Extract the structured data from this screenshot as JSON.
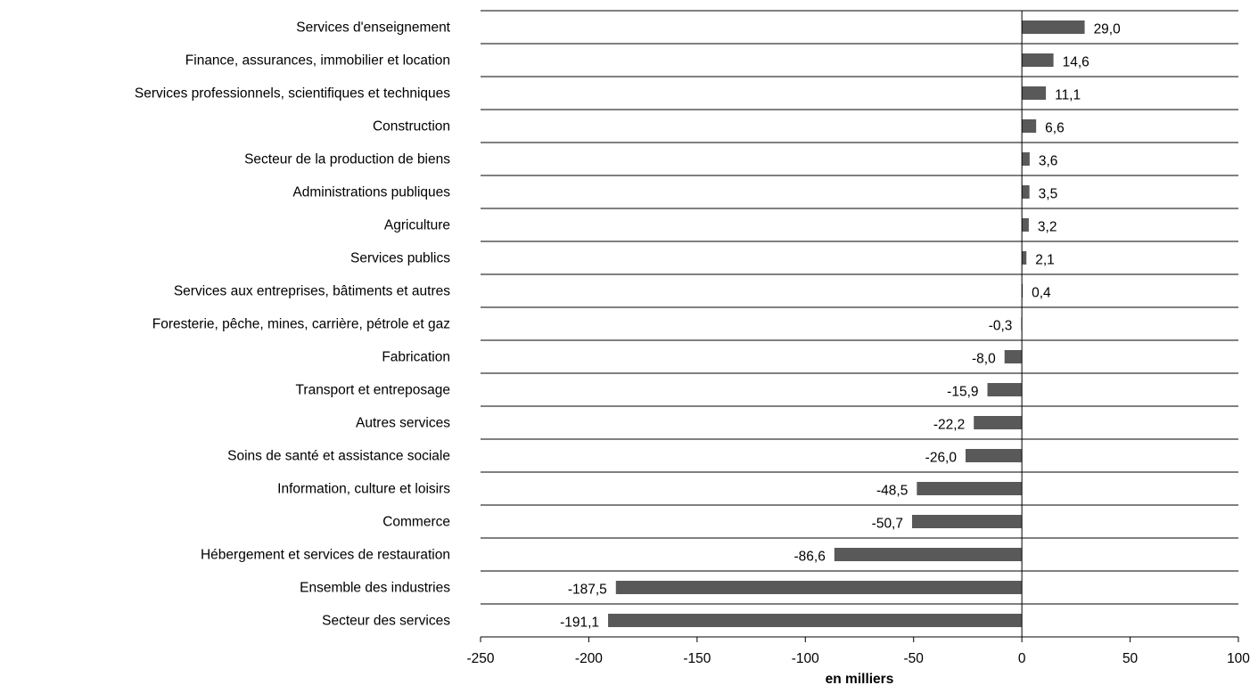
{
  "chart_data": {
    "type": "bar",
    "orientation": "horizontal",
    "categories": [
      "Services d'enseignement",
      "Finance, assurances, immobilier et location",
      "Services professionnels, scientifiques et techniques",
      "Construction",
      "Secteur de la production de biens",
      "Administrations publiques",
      "Agriculture",
      "Services publics",
      "Services aux entreprises, bâtiments et autres",
      "Foresterie, pêche, mines, carrière, pétrole et gaz",
      "Fabrication",
      "Transport et entreposage",
      "Autres services",
      "Soins de santé et assistance sociale",
      "Information, culture et loisirs",
      "Commerce",
      "Hébergement et services de restauration",
      "Ensemble des industries",
      "Secteur des services"
    ],
    "values": [
      29.0,
      14.6,
      11.1,
      6.6,
      3.6,
      3.5,
      3.2,
      2.1,
      0.4,
      -0.3,
      -8.0,
      -15.9,
      -22.2,
      -26.0,
      -48.5,
      -50.7,
      -86.6,
      -187.5,
      -191.1
    ],
    "value_labels": [
      "29,0",
      "14,6",
      "11,1",
      "6,6",
      "3,6",
      "3,5",
      "3,2",
      "2,1",
      "0,4",
      "-0,3",
      "-8,0",
      "-15,9",
      "-22,2",
      "-26,0",
      "-48,5",
      "-50,7",
      "-86,6",
      "-187,5",
      "-191,1"
    ],
    "xlabel": "en milliers",
    "ylabel": "",
    "title": "",
    "xlim": [
      -250,
      100
    ],
    "xticks": [
      -250,
      -200,
      -150,
      -100,
      -50,
      0,
      50,
      100
    ],
    "xtick_labels": [
      "-250",
      "-200",
      "-150",
      "-100",
      "-50",
      "0",
      "50",
      "100"
    ],
    "grid": "horizontal row separators",
    "legend": "none",
    "bar_color": "#595959"
  }
}
